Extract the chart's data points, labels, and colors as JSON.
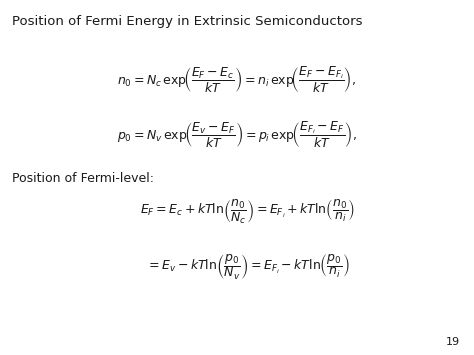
{
  "title": "Position of Fermi Energy in Extrinsic Semiconductors",
  "subtitle": "Position of Fermi-level:",
  "page_number": "19",
  "background_color": "#ffffff",
  "text_color": "#1a1a1a",
  "title_fontsize": 9.5,
  "eq_fontsize": 9,
  "label_fontsize": 9,
  "page_fontsize": 8
}
